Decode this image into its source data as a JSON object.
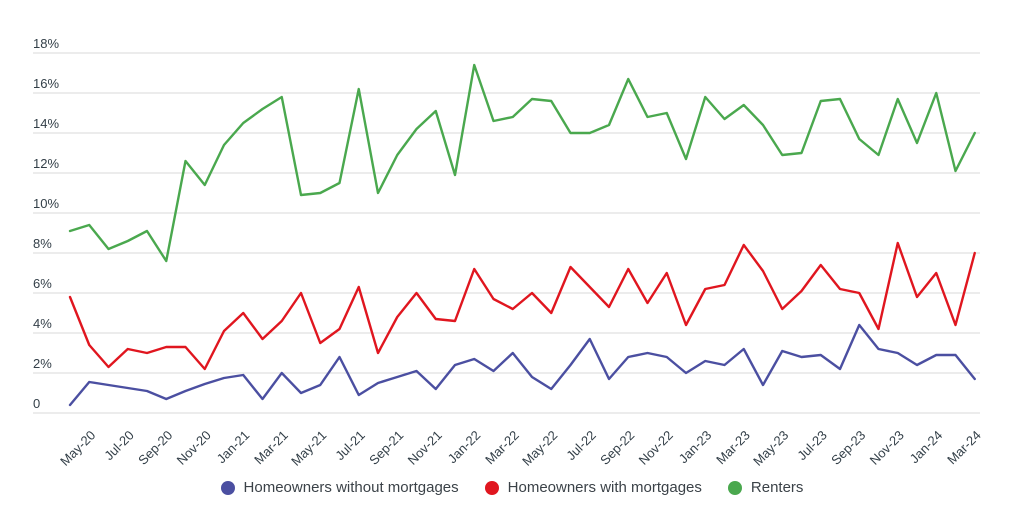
{
  "chart_data": {
    "type": "line",
    "title": "",
    "xlabel": "",
    "ylabel": "",
    "ylim": [
      0,
      18
    ],
    "y_unit": "percent",
    "grid": "horizontal",
    "legend_position": "bottom-center",
    "y_ticks": [
      "18%",
      "16%",
      "14%",
      "12%",
      "10%",
      "8%",
      "6%",
      "4%",
      "2%",
      "0"
    ],
    "x": [
      "Apr-20",
      "May-20",
      "Jun-20",
      "Jul-20",
      "Aug-20",
      "Sep-20",
      "Oct-20",
      "Nov-20",
      "Dec-20",
      "Jan-21",
      "Feb-21",
      "Mar-21",
      "Apr-21",
      "May-21",
      "Jun-21",
      "Jul-21",
      "Aug-21",
      "Sep-21",
      "Oct-21",
      "Nov-21",
      "Dec-21",
      "Jan-22",
      "Feb-22",
      "Mar-22",
      "Apr-22",
      "May-22",
      "Jun-22",
      "Jul-22",
      "Aug-22",
      "Sep-22",
      "Oct-22",
      "Nov-22",
      "Dec-22",
      "Jan-23",
      "Feb-23",
      "Mar-23",
      "Apr-23",
      "May-23",
      "Jun-23",
      "Jul-23",
      "Aug-23",
      "Sep-23",
      "Oct-23",
      "Nov-23",
      "Dec-23",
      "Jan-24",
      "Feb-24",
      "Mar-24"
    ],
    "x_tick_labels": [
      "May-20",
      "Jul-20",
      "Sep-20",
      "Nov-20",
      "Jan-21",
      "Mar-21",
      "May-21",
      "Jul-21",
      "Sep-21",
      "Nov-21",
      "Jan-22",
      "Mar-22",
      "May-22",
      "Jul-22",
      "Sep-22",
      "Nov-22",
      "Jan-23",
      "Mar-23",
      "May-23",
      "Jul-23",
      "Sep-23",
      "Nov-23",
      "Jan-24",
      "Mar-24"
    ],
    "series": [
      {
        "name": "Homeowners without mortgages",
        "color": "#4b4fa1",
        "values": [
          0.4,
          1.55,
          1.4,
          1.25,
          1.1,
          0.7,
          1.1,
          1.45,
          1.75,
          1.9,
          0.7,
          2.0,
          1.0,
          1.4,
          2.8,
          0.9,
          1.5,
          1.8,
          2.1,
          1.2,
          2.4,
          2.7,
          2.1,
          3.0,
          1.8,
          1.2,
          2.4,
          3.7,
          1.7,
          2.8,
          3.0,
          2.8,
          2.0,
          2.6,
          2.4,
          3.2,
          1.4,
          3.1,
          2.8,
          2.9,
          2.2,
          4.4,
          3.2,
          3.0,
          2.4,
          2.9,
          2.9,
          1.7
        ]
      },
      {
        "name": "Homeowners with mortgages",
        "color": "#e0161f",
        "values": [
          5.8,
          3.4,
          2.3,
          3.2,
          3.0,
          3.3,
          3.3,
          2.2,
          4.1,
          5.0,
          3.7,
          4.6,
          6.0,
          3.5,
          4.2,
          6.3,
          3.0,
          4.8,
          6.0,
          4.7,
          4.6,
          7.2,
          5.7,
          5.2,
          6.0,
          5.0,
          7.3,
          6.3,
          5.3,
          7.2,
          5.5,
          7.0,
          4.4,
          6.2,
          6.4,
          8.4,
          7.1,
          5.2,
          6.1,
          7.4,
          6.2,
          6.0,
          4.2,
          8.5,
          5.8,
          7.0,
          4.4,
          8.0
        ]
      },
      {
        "name": "Renters",
        "color": "#4aa84e",
        "values": [
          9.1,
          9.4,
          8.2,
          8.6,
          9.1,
          7.6,
          12.6,
          11.4,
          13.4,
          14.5,
          15.2,
          15.8,
          10.9,
          11.0,
          11.5,
          16.2,
          11.0,
          12.9,
          14.2,
          15.1,
          11.9,
          17.4,
          14.6,
          14.8,
          15.7,
          15.6,
          14.0,
          14.0,
          14.4,
          16.7,
          14.8,
          15.0,
          12.7,
          15.8,
          14.7,
          15.4,
          14.4,
          12.9,
          13.0,
          15.6,
          15.7,
          13.7,
          12.9,
          15.7,
          13.5,
          16.0,
          12.1,
          14.0
        ]
      }
    ],
    "axis_text_color": "#333f48",
    "gridline_color": "#d9d9d9"
  }
}
